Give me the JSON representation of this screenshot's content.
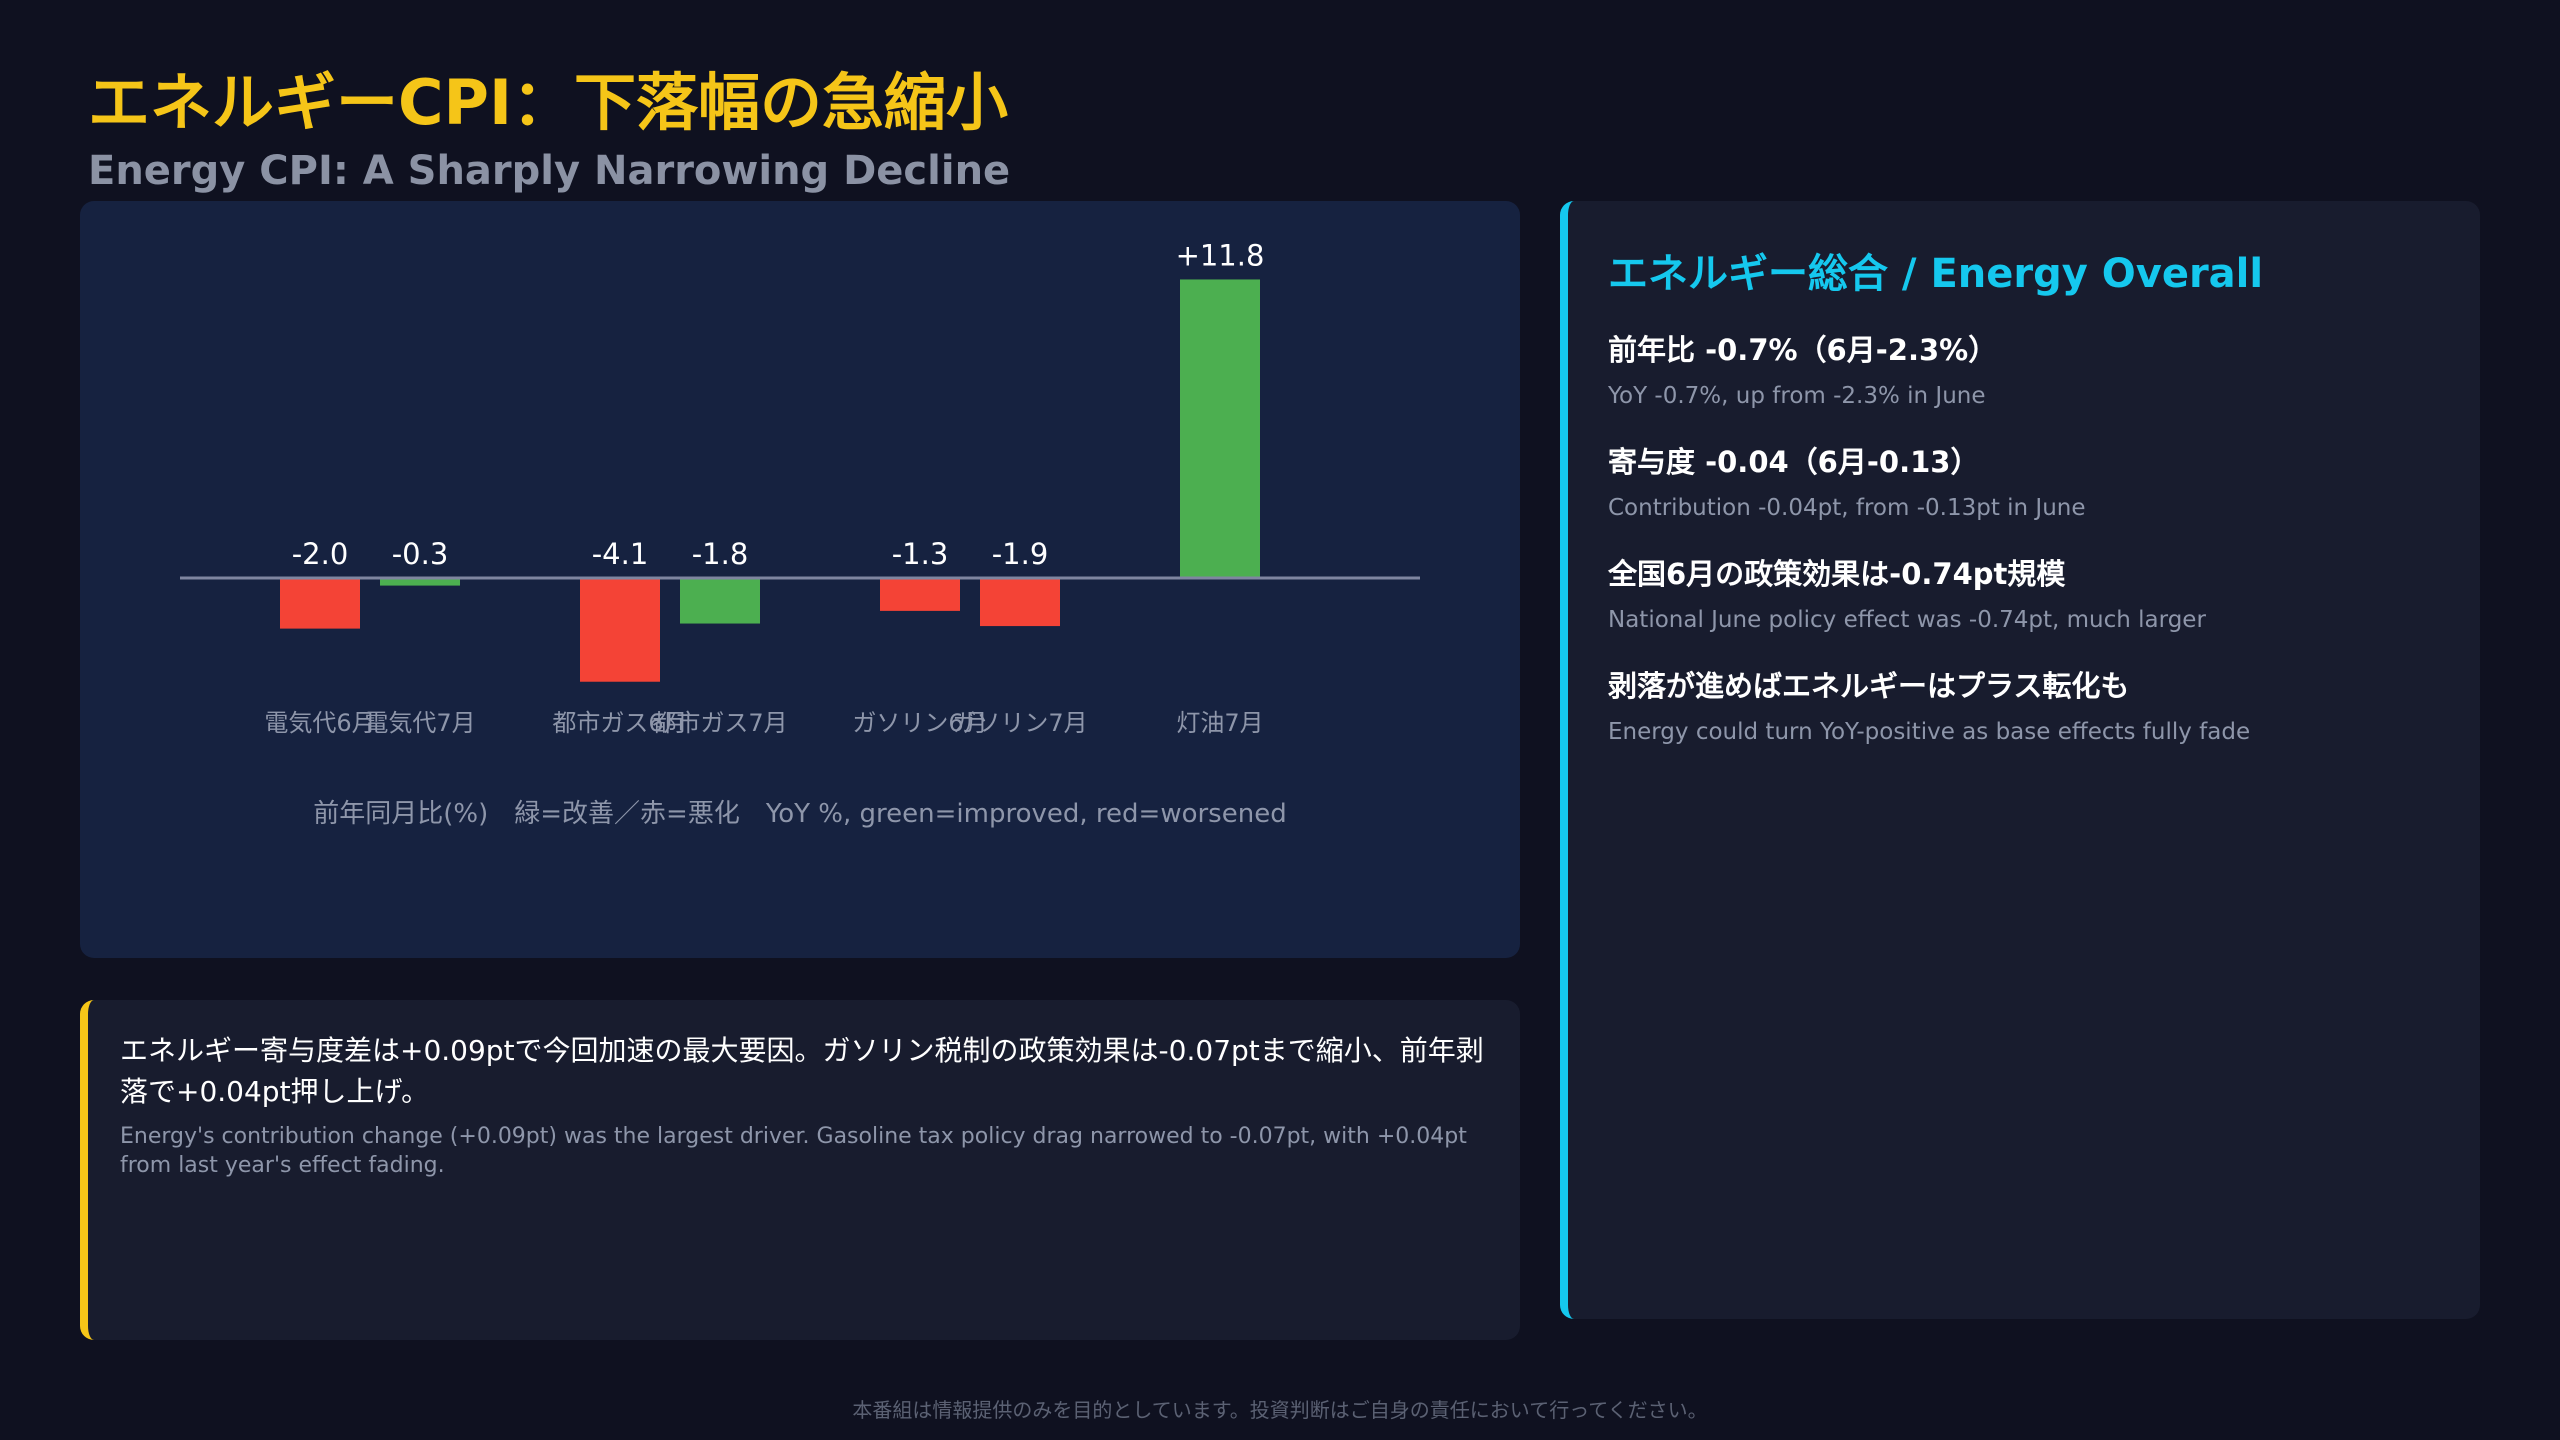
{
  "header": {
    "title": "エネルギーCPI：下落幅の急縮小",
    "subtitle": "Energy CPI: A Sharply Narrowing Decline"
  },
  "colors": {
    "accent": "#f5c518",
    "side_accent": "#15c8ee",
    "improved": "#4caf50",
    "worsened": "#f44336",
    "baseline": "#7f86a0"
  },
  "chart_data": {
    "type": "bar",
    "categories": [
      "電気代6月",
      "電気代7月",
      "都市ガス6月",
      "都市ガス7月",
      "ガソリン6月",
      "ガソリン7月",
      "灯油7月"
    ],
    "values": [
      -2.0,
      -0.3,
      -4.1,
      -1.8,
      -1.3,
      -1.9,
      11.8
    ],
    "value_labels": [
      "-2.0",
      "-0.3",
      "-4.1",
      "-1.8",
      "-1.3",
      "-1.9",
      "+11.8"
    ],
    "bar_status": [
      "worsened",
      "improved",
      "worsened",
      "improved",
      "worsened",
      "worsened",
      "improved"
    ],
    "ylim": [
      -4.1,
      11.8
    ],
    "note": "前年同月比(%)　緑=改善／赤=悪化　YoY %, green=improved, red=worsened",
    "grid": false,
    "legend": "none"
  },
  "side_panel": {
    "heading": "エネルギー総合 / Energy Overall",
    "items": [
      {
        "ja": "前年比 -0.7%（6月-2.3%）",
        "en": "YoY -0.7%, up from -2.3% in June"
      },
      {
        "ja": "寄与度 -0.04（6月-0.13）",
        "en": "Contribution -0.04pt, from -0.13pt in June"
      },
      {
        "ja": "全国6月の政策効果は-0.74pt規模",
        "en": "National June policy effect was -0.74pt, much larger"
      },
      {
        "ja": "剥落が進めばエネルギーはプラス転化も",
        "en": "Energy could turn YoY-positive as base effects fully fade"
      }
    ]
  },
  "note_panel": {
    "ja": "エネルギー寄与度差は+0.09ptで今回加速の最大要因。ガソリン税制の政策効果は-0.07ptまで縮小、前年剥落で+0.04pt押し上げ。",
    "en": "Energy's contribution change (+0.09pt) was the largest driver. Gasoline tax policy drag narrowed to -0.07pt, with +0.04pt from last year's effect fading."
  },
  "footer": {
    "disclaimer": "本番組は情報提供のみを目的としています。投資判断はご自身の責任において行ってください。"
  }
}
